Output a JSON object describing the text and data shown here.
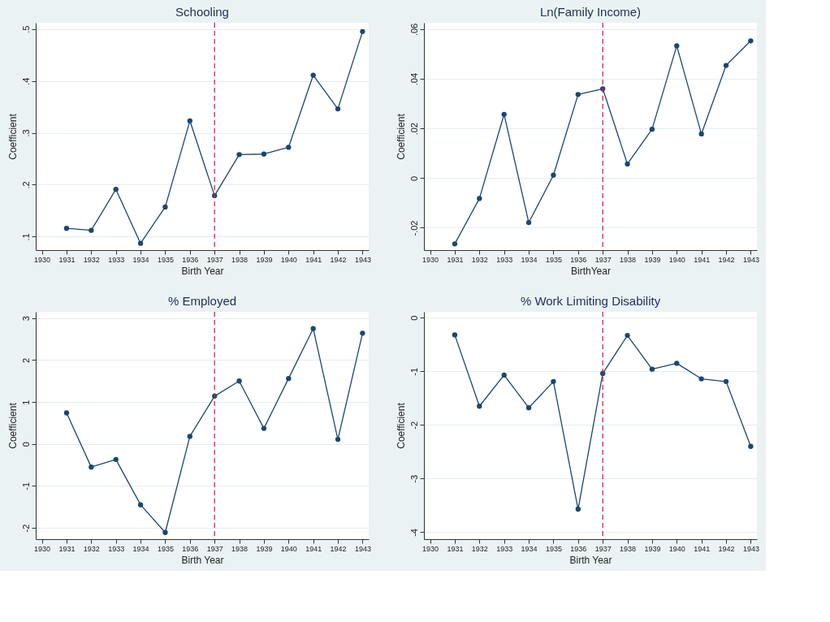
{
  "chart_data": [
    {
      "type": "line",
      "title": "Schooling",
      "xlabel": "Birth Year",
      "ylabel": "Coefficient",
      "x": [
        1931,
        1932,
        1933,
        1934,
        1935,
        1936,
        1937,
        1938,
        1939,
        1940,
        1941,
        1942,
        1943
      ],
      "series": [
        {
          "color": "#1a476f",
          "values": [
            0.116,
            0.112,
            0.191,
            0.087,
            0.157,
            0.323,
            0.179,
            0.258,
            0.259,
            0.272,
            0.411,
            0.346,
            0.495
          ]
        }
      ],
      "xlim": [
        1929.75,
        1943.25
      ],
      "xticks": [
        1930,
        1931,
        1932,
        1933,
        1934,
        1935,
        1936,
        1937,
        1938,
        1939,
        1940,
        1941,
        1942,
        1943
      ],
      "ylim": [
        0.074,
        0.512
      ],
      "yticks": [
        {
          "value": 0.1,
          "label": ".1"
        },
        {
          "value": 0.2,
          "label": ".2"
        },
        {
          "value": 0.3,
          "label": ".3"
        },
        {
          "value": 0.4,
          "label": ".4"
        },
        {
          "value": 0.5,
          "label": ".5"
        }
      ],
      "ref_lines": [
        {
          "axis": "x",
          "value": 1937,
          "color": "#d6214f",
          "line_style": "dashed"
        }
      ],
      "grid": "y",
      "marker": "circle",
      "line_style": "solid"
    },
    {
      "type": "line",
      "title": "Ln(Family Income)",
      "xlabel": "BirthYear",
      "ylabel": "Coefficient",
      "x": [
        1931,
        1932,
        1933,
        1934,
        1935,
        1936,
        1937,
        1938,
        1939,
        1940,
        1941,
        1942,
        1943
      ],
      "series": [
        {
          "color": "#1a476f",
          "values": [
            -0.0265,
            -0.0082,
            0.0257,
            -0.0179,
            0.0012,
            0.0337,
            0.036,
            0.0057,
            0.0197,
            0.0533,
            0.0178,
            0.0454,
            0.0553
          ]
        }
      ],
      "xlim": [
        1929.75,
        1943.25
      ],
      "xticks": [
        1930,
        1931,
        1932,
        1933,
        1934,
        1935,
        1936,
        1937,
        1938,
        1939,
        1940,
        1941,
        1942,
        1943
      ],
      "ylim": [
        -0.029,
        0.0626
      ],
      "yticks": [
        {
          "value": -0.02,
          "label": "-.02"
        },
        0,
        {
          "value": 0.02,
          "label": ".02"
        },
        {
          "value": 0.04,
          "label": ".04"
        },
        {
          "value": 0.06,
          "label": ".06"
        }
      ],
      "ref_lines": [
        {
          "axis": "x",
          "value": 1937,
          "color": "#d6214f",
          "line_style": "dashed"
        }
      ],
      "grid": "y",
      "marker": "circle",
      "line_style": "solid"
    },
    {
      "type": "line",
      "title": "% Employed",
      "xlabel": "Birth Year",
      "ylabel": "Coefficient",
      "x": [
        1931,
        1932,
        1933,
        1934,
        1935,
        1936,
        1937,
        1938,
        1939,
        1940,
        1941,
        1942,
        1943
      ],
      "series": [
        {
          "color": "#1a476f",
          "values": [
            0.74,
            -0.55,
            -0.37,
            -1.45,
            -2.11,
            0.18,
            1.14,
            1.5,
            0.37,
            1.56,
            2.75,
            0.11,
            2.64
          ]
        }
      ],
      "xlim": [
        1929.75,
        1943.25
      ],
      "xticks": [
        1930,
        1931,
        1932,
        1933,
        1934,
        1935,
        1936,
        1937,
        1938,
        1939,
        1940,
        1941,
        1942,
        1943
      ],
      "ylim": [
        -2.27,
        3.15
      ],
      "yticks": [
        -2,
        -1,
        0,
        1,
        2,
        3
      ],
      "ref_lines": [
        {
          "axis": "x",
          "value": 1937,
          "color": "#d6214f",
          "line_style": "dashed"
        }
      ],
      "grid": "y",
      "marker": "circle",
      "line_style": "solid"
    },
    {
      "type": "line",
      "title": "% Work Limiting Disability",
      "xlabel": "Birth Year",
      "ylabel": "Coefficient",
      "x": [
        1931,
        1932,
        1933,
        1934,
        1935,
        1936,
        1937,
        1938,
        1939,
        1940,
        1941,
        1942,
        1943
      ],
      "series": [
        {
          "color": "#1a476f",
          "values": [
            -0.32,
            -1.65,
            -1.07,
            -1.68,
            -1.19,
            -3.57,
            -1.04,
            -0.33,
            -0.96,
            -0.85,
            -1.14,
            -1.19,
            -2.4
          ]
        }
      ],
      "xlim": [
        1929.75,
        1943.25
      ],
      "xticks": [
        1930,
        1931,
        1932,
        1933,
        1934,
        1935,
        1936,
        1937,
        1938,
        1939,
        1940,
        1941,
        1942,
        1943
      ],
      "ylim": [
        -4.13,
        0.11
      ],
      "yticks": [
        -4,
        -3,
        -2,
        -1,
        0
      ],
      "ref_lines": [
        {
          "axis": "x",
          "value": 1937,
          "color": "#d6214f",
          "line_style": "dashed"
        }
      ],
      "grid": "y",
      "marker": "circle",
      "line_style": "solid"
    }
  ]
}
